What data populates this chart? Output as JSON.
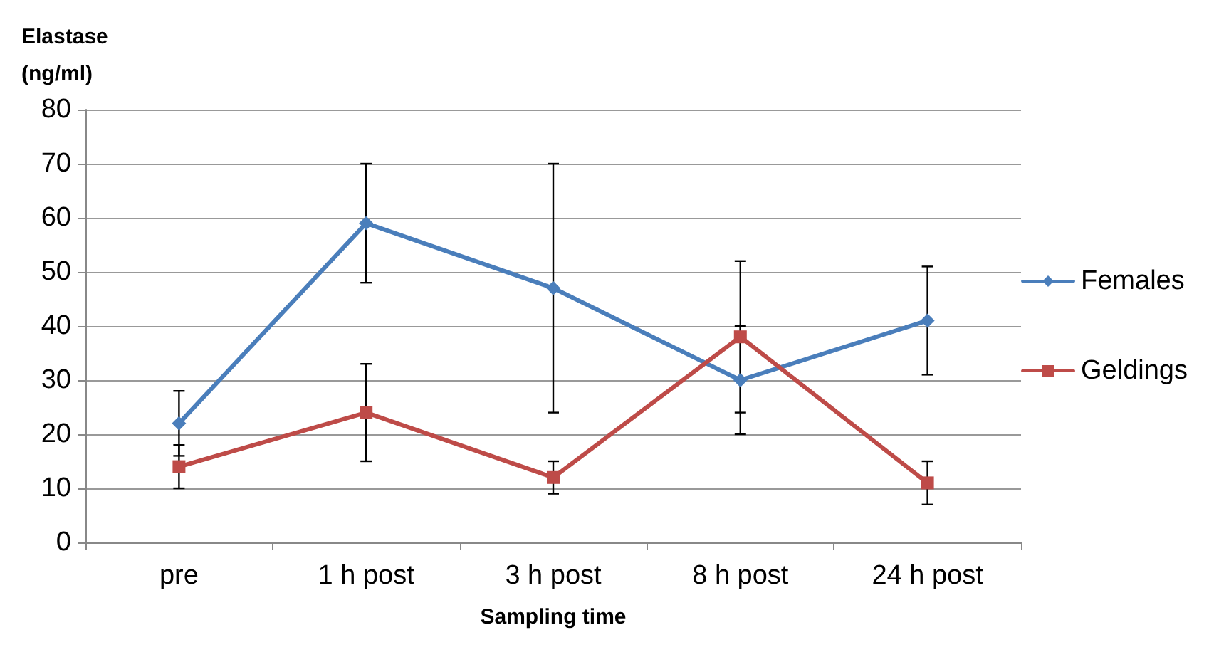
{
  "chart_data": {
    "type": "line",
    "ylabel": "Elastase\n(ng/ml)",
    "xlabel": "Sampling time",
    "categories": [
      "pre",
      "1 h post",
      "3 h post",
      "8 h post",
      "24 h post"
    ],
    "series": [
      {
        "name": "Females",
        "color": "#4a7ebb",
        "marker": "diamond",
        "values": [
          22,
          59,
          47,
          30,
          41
        ],
        "errors": [
          6,
          11,
          [
            24,
            70
          ],
          10,
          10
        ]
      },
      {
        "name": "Geldings",
        "color": "#be4b48",
        "marker": "square",
        "values": [
          14,
          24,
          12,
          38,
          11
        ],
        "errors": [
          4,
          9,
          3,
          14,
          4
        ]
      }
    ],
    "ylim": [
      0,
      80
    ],
    "yticks": [
      0,
      10,
      20,
      30,
      40,
      50,
      60,
      70,
      80
    ],
    "grid": "y",
    "legend": "right"
  }
}
